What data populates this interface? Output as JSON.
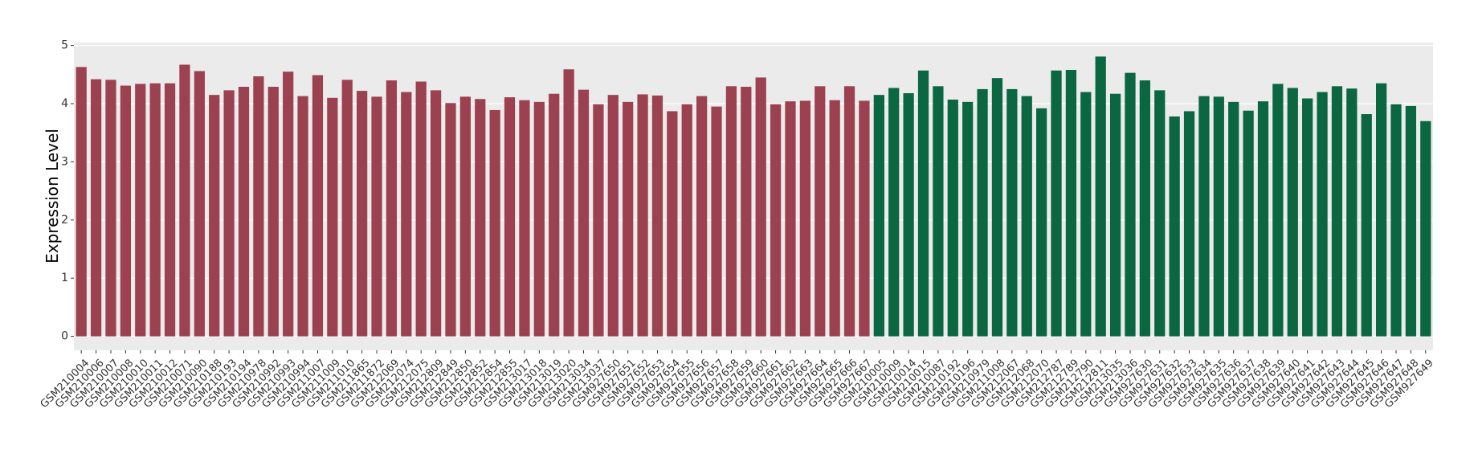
{
  "chart_data": {
    "type": "bar",
    "y_label": "Expression Level",
    "categories": [
      "GSM210004",
      "GSM210006",
      "GSM210007",
      "GSM210008",
      "GSM210010",
      "GSM210011",
      "GSM210012",
      "GSM210071",
      "GSM210090",
      "GSM210188",
      "GSM210193",
      "GSM210194",
      "GSM210978",
      "GSM210992",
      "GSM210993",
      "GSM210994",
      "GSM211007",
      "GSM211009",
      "GSM211010",
      "GSM211865",
      "GSM211872",
      "GSM212069",
      "GSM212074",
      "GSM212075",
      "GSM212809",
      "GSM212849",
      "GSM212850",
      "GSM212852",
      "GSM212854",
      "GSM212855",
      "GSM213017",
      "GSM213018",
      "GSM213019",
      "GSM213020",
      "GSM213034",
      "GSM213037",
      "GSM927650",
      "GSM927651",
      "GSM927652",
      "GSM927653",
      "GSM927654",
      "GSM927655",
      "GSM927656",
      "GSM927657",
      "GSM927658",
      "GSM927659",
      "GSM927660",
      "GSM927661",
      "GSM927662",
      "GSM927663",
      "GSM927664",
      "GSM927665",
      "GSM927666",
      "GSM927667",
      "GSM210005",
      "GSM210009",
      "GSM210014",
      "GSM210015",
      "GSM210087",
      "GSM210192",
      "GSM210196",
      "GSM210979",
      "GSM211008",
      "GSM212067",
      "GSM212068",
      "GSM212070",
      "GSM212787",
      "GSM212789",
      "GSM212790",
      "GSM212811",
      "GSM213035",
      "GSM213036",
      "GSM927630",
      "GSM927631",
      "GSM927632",
      "GSM927633",
      "GSM927634",
      "GSM927635",
      "GSM927636",
      "GSM927637",
      "GSM927638",
      "GSM927639",
      "GSM927640",
      "GSM927641",
      "GSM927642",
      "GSM927643",
      "GSM927644",
      "GSM927645",
      "GSM927646",
      "GSM927647",
      "GSM927648",
      "GSM927649"
    ],
    "series": [
      {
        "color": "#9b4150",
        "values": [
          4.63,
          4.42,
          4.41,
          4.31,
          4.34,
          4.35,
          4.35,
          4.67,
          4.56,
          4.15,
          4.23,
          4.29,
          4.47,
          4.29,
          4.55,
          4.13,
          4.49,
          4.1,
          4.41,
          4.22,
          4.12,
          4.4,
          4.2,
          4.38,
          4.23,
          4.01,
          4.12,
          4.08,
          3.89,
          4.11,
          4.06,
          4.03,
          4.17,
          4.59,
          4.24,
          3.99,
          4.15,
          4.03,
          4.16,
          4.14,
          3.87,
          3.99,
          4.13,
          3.95,
          4.3,
          4.29,
          4.45,
          3.99,
          4.04,
          4.05,
          4.3,
          4.06,
          4.3,
          4.05,
          null,
          null,
          null,
          null,
          null,
          null,
          null,
          null,
          null,
          null,
          null,
          null,
          null,
          null,
          null,
          null,
          null,
          null,
          null,
          null,
          null,
          null,
          null,
          null,
          null,
          null,
          null,
          null,
          null,
          null,
          null,
          null,
          null,
          null,
          null,
          null,
          null,
          null
        ]
      },
      {
        "color": "#0b6642",
        "values": [
          null,
          null,
          null,
          null,
          null,
          null,
          null,
          null,
          null,
          null,
          null,
          null,
          null,
          null,
          null,
          null,
          null,
          null,
          null,
          null,
          null,
          null,
          null,
          null,
          null,
          null,
          null,
          null,
          null,
          null,
          null,
          null,
          null,
          null,
          null,
          null,
          null,
          null,
          null,
          null,
          null,
          null,
          null,
          null,
          null,
          null,
          null,
          null,
          null,
          null,
          null,
          null,
          null,
          null,
          4.15,
          4.27,
          4.18,
          4.57,
          4.3,
          4.07,
          4.03,
          4.25,
          4.44,
          4.25,
          4.13,
          3.92,
          4.57,
          4.58,
          4.2,
          4.81,
          4.17,
          4.53,
          4.4,
          4.23,
          3.78,
          3.87,
          4.13,
          4.12,
          4.03,
          3.88,
          4.04,
          4.34,
          4.27,
          4.09,
          4.2,
          4.3,
          4.26,
          3.82,
          4.35,
          3.99,
          3.96,
          3.7
        ]
      }
    ],
    "ylim": [
      -0.24,
      5.05
    ],
    "yticks": [
      0,
      1,
      2,
      3,
      4,
      5
    ],
    "grid": true
  }
}
